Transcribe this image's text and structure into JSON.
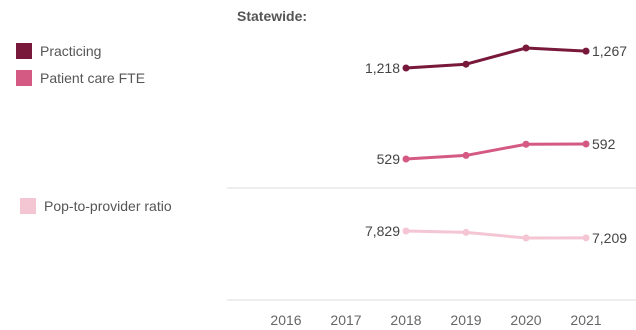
{
  "heading": "Statewide:",
  "legend": [
    {
      "label": "Practicing",
      "color": "#78183a"
    },
    {
      "label": "Patient care FTE",
      "color": "#d45a84"
    },
    {
      "label": "Pop-to-provider ratio",
      "color": "#f4c6d4"
    }
  ],
  "chart_data": {
    "type": "line",
    "title": "Statewide:",
    "x": [
      "2016",
      "2017",
      "2018",
      "2019",
      "2020",
      "2021"
    ],
    "series": [
      {
        "name": "Practicing",
        "color": "#78183a",
        "values": [
          null,
          null,
          1218,
          1229,
          1276,
          1267
        ],
        "labels": [
          "1,218",
          "1,267"
        ]
      },
      {
        "name": "Patient care FTE",
        "color": "#d45a84",
        "values": [
          null,
          null,
          529,
          544,
          591,
          592
        ],
        "labels": [
          "529",
          "592"
        ]
      },
      {
        "name": "Pop-to-provider ratio",
        "color": "#f4c6d4",
        "values": [
          null,
          null,
          7829,
          7702,
          7194,
          7209
        ],
        "labels": [
          "7,829",
          "7,209"
        ]
      }
    ],
    "grid": false
  }
}
